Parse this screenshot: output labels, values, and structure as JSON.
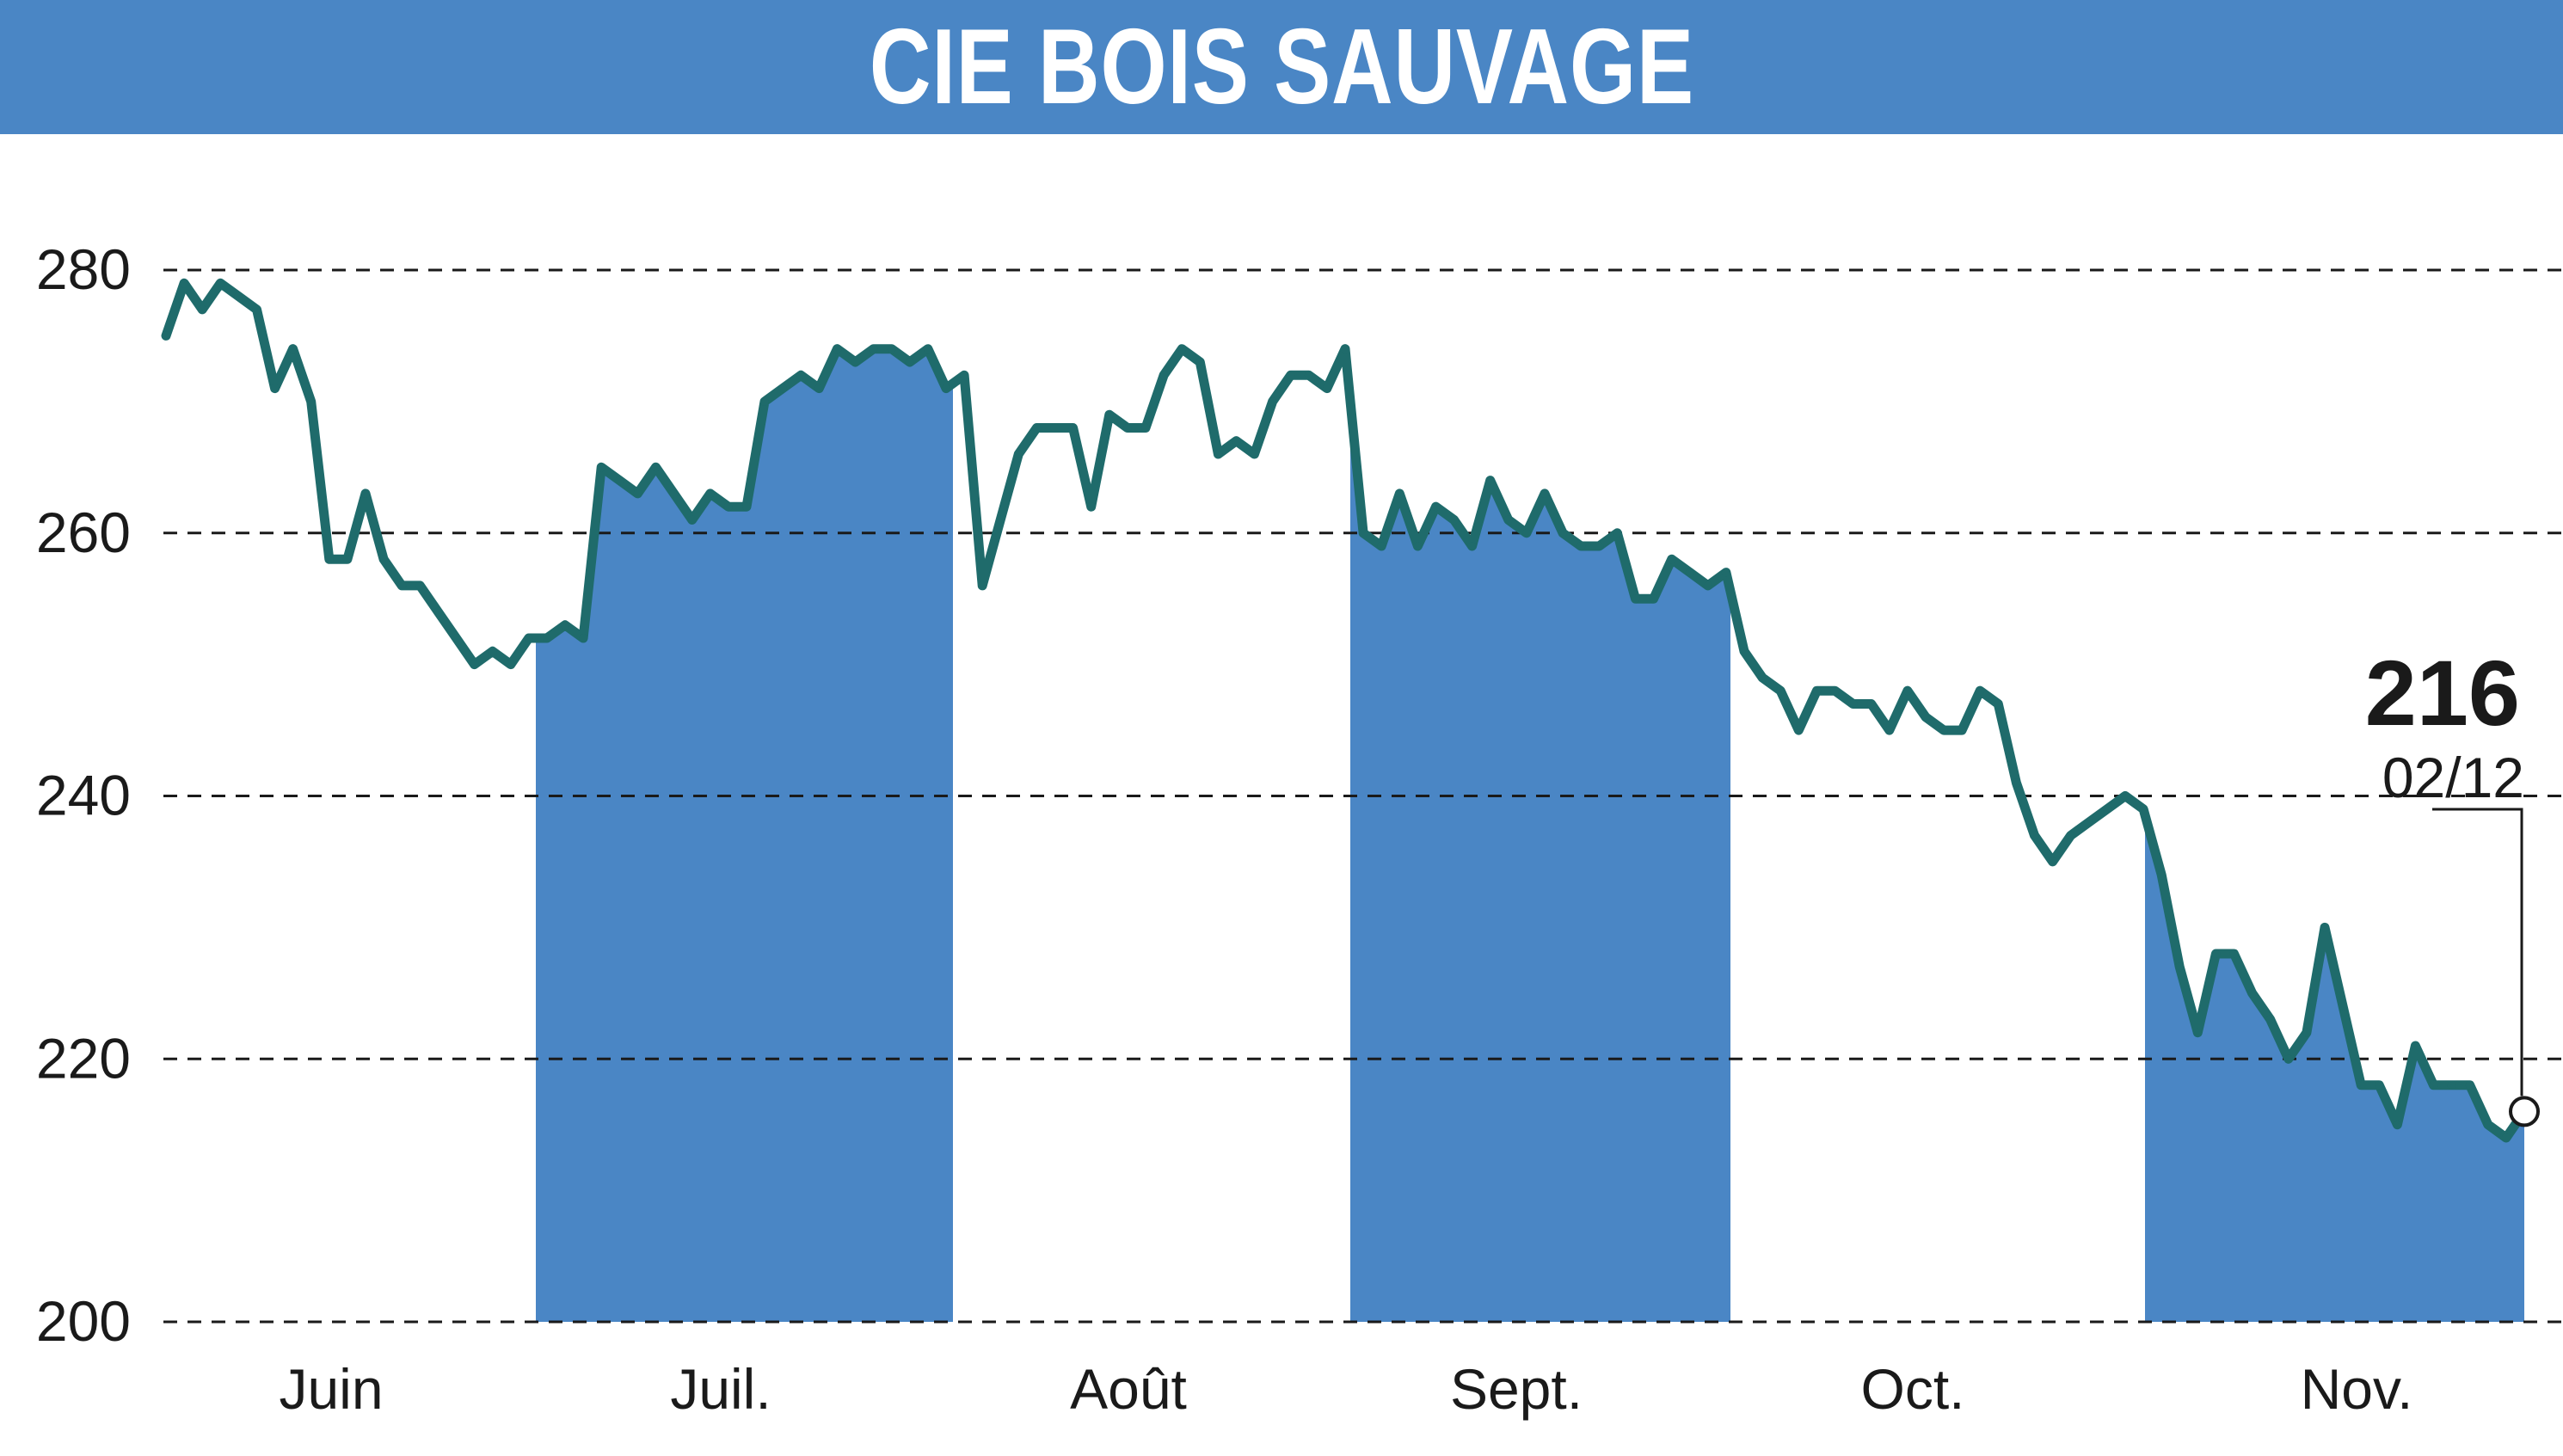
{
  "title": "CIE BOIS SAUVAGE",
  "last_value_label": "216",
  "last_date_label": "02/12",
  "colors": {
    "title_bar": "#4a86c5",
    "band_fill": "#4a86c5",
    "line": "#1f6b6b",
    "grid": "#1a1a1a"
  },
  "chart_data": {
    "type": "line",
    "title": "CIE BOIS SAUVAGE",
    "xlabel": "",
    "ylabel": "",
    "ylim": [
      200,
      280
    ],
    "yticks": [
      200,
      220,
      240,
      260,
      280
    ],
    "grid": "horizontal dashed",
    "months": [
      "Juin",
      "Juil.",
      "Août",
      "Sept.",
      "Oct.",
      "Nov."
    ],
    "shaded_months": [
      "Juil.",
      "Sept.",
      "Nov."
    ],
    "last_value": 216,
    "last_date": "02/12",
    "series": [
      {
        "values": [
          275,
          279,
          277,
          279,
          278,
          277,
          271,
          274,
          270,
          258,
          258,
          263,
          258,
          256,
          256,
          254,
          252,
          250,
          251,
          250,
          252,
          252,
          253,
          252,
          265,
          264,
          263,
          265,
          263,
          261,
          263,
          262,
          262,
          270,
          271,
          272,
          271,
          274,
          273,
          274,
          274,
          273,
          274,
          271,
          272,
          256,
          261,
          266,
          268,
          268,
          268,
          262,
          269,
          268,
          268,
          272,
          274,
          273,
          266,
          267,
          266,
          270,
          272,
          272,
          271,
          274,
          260,
          259,
          263,
          259,
          262,
          261,
          259,
          264,
          261,
          260,
          263,
          260,
          259,
          259,
          260,
          255,
          255,
          258,
          257,
          256,
          257,
          251,
          249,
          248,
          245,
          248,
          248,
          247,
          247,
          245,
          248,
          246,
          245,
          245,
          248,
          247,
          241,
          237,
          235,
          237,
          238,
          239,
          240,
          239,
          234,
          227,
          222,
          228,
          228,
          225,
          223,
          220,
          222,
          230,
          224,
          218,
          218,
          215,
          221,
          218,
          218,
          218,
          215,
          214,
          216
        ]
      }
    ]
  }
}
